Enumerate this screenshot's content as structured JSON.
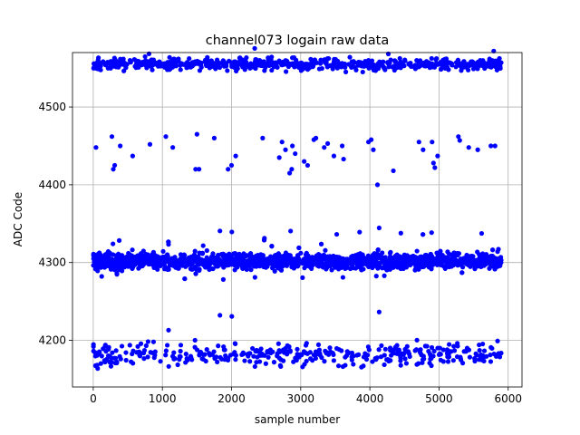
{
  "chart_data": {
    "type": "scatter",
    "title": "channel073 logain raw data",
    "xlabel": "sample number",
    "ylabel": "ADC Code",
    "xlim": [
      -300,
      6200
    ],
    "ylim": [
      4140,
      4570
    ],
    "x_ticks": [
      0,
      1000,
      2000,
      3000,
      4000,
      5000,
      6000
    ],
    "y_ticks": [
      4200,
      4300,
      4400,
      4500
    ],
    "x_tick_labels": [
      "0",
      "1000",
      "2000",
      "3000",
      "4000",
      "5000",
      "6000"
    ],
    "y_tick_labels": [
      "4200",
      "4300",
      "4400",
      "4500"
    ],
    "grid": true,
    "marker_color": "#0000ff",
    "series": [
      {
        "clusters": [
          {
            "level": 4555,
            "x_range": [
              0,
              5900
            ],
            "spread": 5,
            "count": 650,
            "min": 4545,
            "max": 4577
          },
          {
            "level": 4302,
            "x_range": [
              0,
              5900
            ],
            "spread": 7,
            "count": 1900,
            "min": 4278,
            "max": 4345
          },
          {
            "level": 4182,
            "x_range": [
              0,
              5900
            ],
            "spread": 10,
            "count": 380,
            "min": 4163,
            "max": 4237
          }
        ],
        "points": [
          [
            40,
            4448
          ],
          [
            270,
            4462
          ],
          [
            290,
            4420
          ],
          [
            310,
            4425
          ],
          [
            390,
            4450
          ],
          [
            570,
            4437
          ],
          [
            820,
            4452
          ],
          [
            1050,
            4462
          ],
          [
            1150,
            4448
          ],
          [
            1480,
            4420
          ],
          [
            1500,
            4465
          ],
          [
            1530,
            4420
          ],
          [
            1750,
            4460
          ],
          [
            1950,
            4420
          ],
          [
            2000,
            4425
          ],
          [
            2060,
            4437
          ],
          [
            2450,
            4460
          ],
          [
            2690,
            4435
          ],
          [
            2730,
            4455
          ],
          [
            2780,
            4445
          ],
          [
            2840,
            4415
          ],
          [
            2870,
            4420
          ],
          [
            2880,
            4450
          ],
          [
            2920,
            4440
          ],
          [
            3050,
            4430
          ],
          [
            3100,
            4425
          ],
          [
            3190,
            4458
          ],
          [
            3220,
            4460
          ],
          [
            3340,
            4448
          ],
          [
            3390,
            4453
          ],
          [
            3480,
            4437
          ],
          [
            3600,
            4450
          ],
          [
            3620,
            4433
          ],
          [
            3980,
            4455
          ],
          [
            4020,
            4458
          ],
          [
            4050,
            4445
          ],
          [
            4110,
            4400
          ],
          [
            4340,
            4418
          ],
          [
            4710,
            4455
          ],
          [
            4770,
            4445
          ],
          [
            4900,
            4455
          ],
          [
            4920,
            4428
          ],
          [
            4940,
            4422
          ],
          [
            4980,
            4437
          ],
          [
            5280,
            4462
          ],
          [
            5300,
            4457
          ],
          [
            5430,
            4448
          ],
          [
            5560,
            4445
          ],
          [
            5750,
            4450
          ],
          [
            5810,
            4450
          ]
        ]
      }
    ]
  }
}
